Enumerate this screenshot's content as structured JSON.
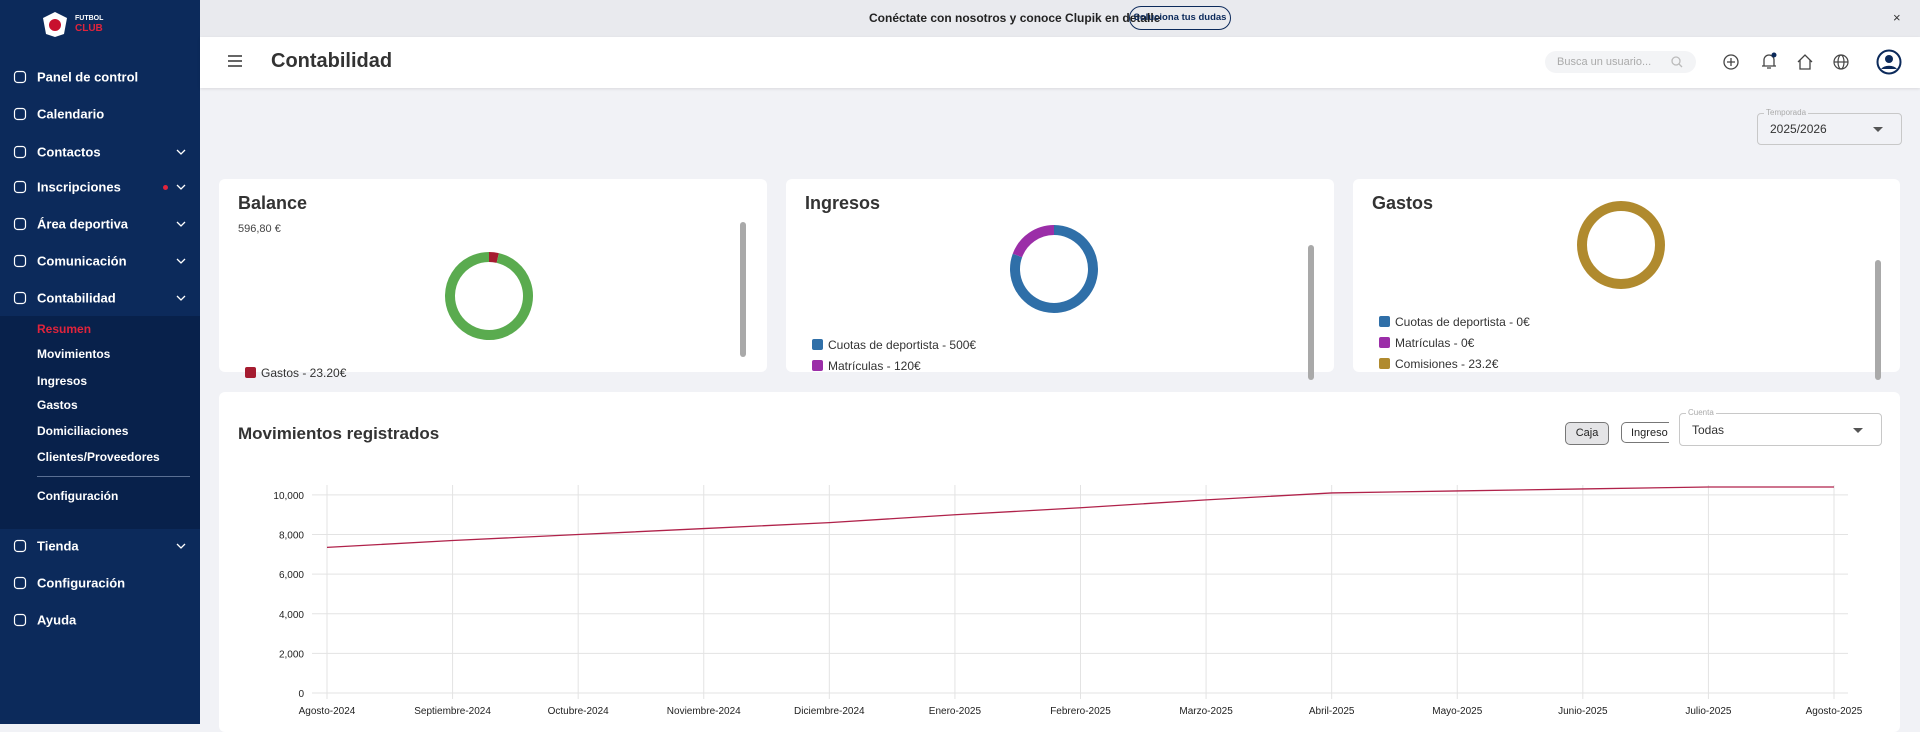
{
  "banner": {
    "text": "Conéctate con nosotros y conoce Clupik en detalle",
    "button": "Soluciona tus dudas"
  },
  "sidebar": {
    "logo": [
      "FUTBOL",
      "CLUB"
    ],
    "menu": [
      "Panel de control",
      "Calendario",
      "Contactos",
      "Inscripciones",
      "Área deportiva",
      "Comunicación",
      "Contabilidad"
    ],
    "submenu": [
      "Resumen",
      "Movimientos",
      "Ingresos",
      "Gastos",
      "Domiciliaciones",
      "Clientes/Proveedores",
      "Configuración"
    ],
    "bottom": [
      "Tienda",
      "Configuración",
      "Ayuda"
    ]
  },
  "header": {
    "title": "Contabilidad",
    "search_placeholder": "Busca un usuario..."
  },
  "season": {
    "label": "Temporada",
    "value": "2025/2026"
  },
  "cards": [
    {
      "title": "Balance",
      "amount": "596,80 €",
      "segments": [
        {
          "value": 23.2,
          "color": "#a51c30",
          "label": "Gastos - 23.20€"
        },
        {
          "value": 620,
          "color": "#5aab4f"
        }
      ]
    },
    {
      "title": "Ingresos",
      "segments": [
        {
          "value": 500,
          "color": "#2f6fa8",
          "label": "Cuotas de deportista - 500€"
        },
        {
          "value": 120,
          "color": "#9b2ea8",
          "label": "Matrículas - 120€"
        }
      ]
    },
    {
      "title": "Gastos",
      "segments": [
        {
          "value": 0,
          "color": "#2f6fa8",
          "label": "Cuotas de deportista - 0€"
        },
        {
          "value": 0,
          "color": "#9b2ea8",
          "label": "Matrículas - 0€"
        },
        {
          "value": 23.2,
          "color": "#b08a2e",
          "label": "Comisiones - 23.2€"
        }
      ]
    }
  ],
  "buttons": [
    "Caja",
    "Ingreso"
  ],
  "account": {
    "label": "Cuenta",
    "value": "Todas"
  },
  "chart_data": {
    "type": "line",
    "title": "Movimientos registrados",
    "categories": [
      "Agosto-2024",
      "Septiembre-2024",
      "Octubre-2024",
      "Noviembre-2024",
      "Diciembre-2024",
      "Enero-2025",
      "Febrero-2025",
      "Marzo-2025",
      "Abril-2025",
      "Mayo-2025",
      "Junio-2025",
      "Julio-2025",
      "Agosto-2025"
    ],
    "values": [
      7350,
      7700,
      8000,
      8300,
      8600,
      9000,
      9350,
      9750,
      10100,
      10200,
      10300,
      10400,
      10400
    ],
    "color": "#b0224a",
    "ylim": [
      0,
      10500
    ],
    "yticks": [
      0,
      {
        "value": 2000,
        "label": "2,000"
      },
      {
        "value": 4000,
        "label": "4,000"
      },
      {
        "value": 6000,
        "label": "6,000"
      },
      {
        "value": 8000,
        "label": "8,000"
      },
      {
        "value": 10000,
        "label": "10,000"
      }
    ],
    "grid": true
  }
}
